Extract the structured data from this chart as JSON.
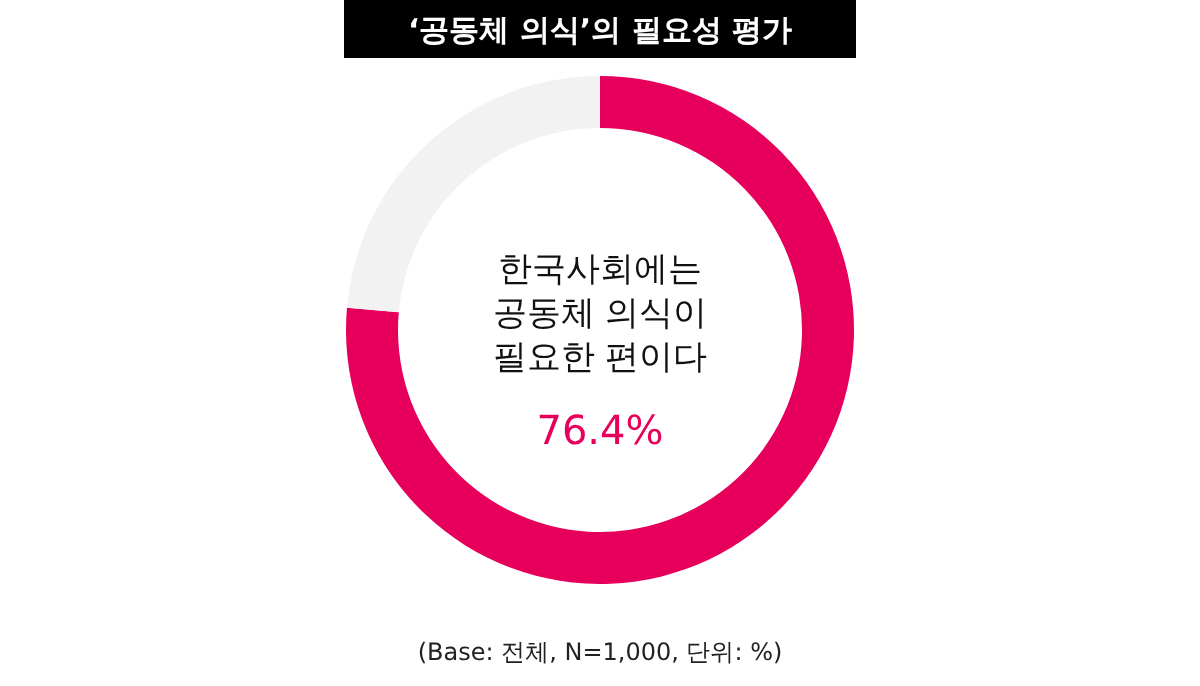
{
  "chart_data": {
    "type": "donut",
    "title": "‘공동체 의식’의 필요성 평가",
    "categories": [
      "한국사회에는 공동체 의식이 필요한 편이다",
      null
    ],
    "values": [
      76.4,
      23.6
    ],
    "colors": [
      "#e6005c",
      "#f2f2f2"
    ],
    "value_labels": [
      "76.4%",
      null
    ],
    "annotations": [
      "(Base: 전체, N=1,000, 단위: %)"
    ]
  }
}
